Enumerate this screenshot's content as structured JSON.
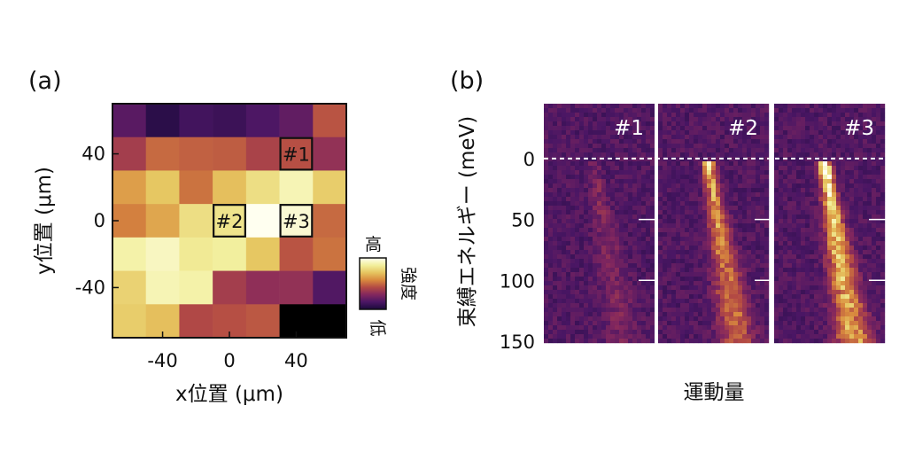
{
  "panel_a": {
    "label": "(a)"
  },
  "panel_b": {
    "label": "(b)"
  },
  "colorbar": {
    "high_label": "高",
    "low_label": "低",
    "title": "強度"
  },
  "colormap": [
    "#1b0a3a",
    "#4a1664",
    "#83275e",
    "#b34a44",
    "#d98a3e",
    "#e6c560",
    "#f2ef9c",
    "#fffff0"
  ],
  "chart_data": [
    {
      "type": "heatmap",
      "xlabel": "x位置 (μm)",
      "ylabel": "y位置 (μm)",
      "xlim": [
        -70,
        70
      ],
      "ylim": [
        -70,
        70
      ],
      "x_ticks": [
        -40,
        0,
        40
      ],
      "y_ticks": [
        40,
        0,
        -40
      ],
      "grid_x_centers": [
        -60,
        -40,
        -20,
        0,
        20,
        40,
        60
      ],
      "grid_y_centers": [
        60,
        40,
        20,
        0,
        -20,
        -40,
        -60
      ],
      "values": [
        [
          0.18,
          0.05,
          0.12,
          0.1,
          0.15,
          0.2,
          0.45
        ],
        [
          0.38,
          0.5,
          0.48,
          0.47,
          0.4,
          0.44,
          0.33
        ],
        [
          0.62,
          0.72,
          0.52,
          0.7,
          0.8,
          0.9,
          0.74
        ],
        [
          0.55,
          0.64,
          0.8,
          0.82,
          1.0,
          0.95,
          0.5
        ],
        [
          0.88,
          0.92,
          0.84,
          0.86,
          0.72,
          0.45,
          0.52
        ],
        [
          0.76,
          0.9,
          0.88,
          0.38,
          0.32,
          0.33,
          0.16
        ],
        [
          0.74,
          0.7,
          0.42,
          0.44,
          0.46,
          0.0,
          0.0
        ]
      ],
      "markers": [
        {
          "label": "#1",
          "x": 40,
          "y": 40
        },
        {
          "label": "#2",
          "x": 0,
          "y": 0
        },
        {
          "label": "#3",
          "x": 40,
          "y": 0
        }
      ]
    },
    {
      "type": "heatmap",
      "ylabel": "束縛エネルギー (meV)",
      "xlabel": "運動量",
      "ylim": [
        -45,
        150
      ],
      "y_ticks": [
        0,
        50,
        100,
        150
      ],
      "reference_line_energy": 0,
      "panels": [
        {
          "label": "#1",
          "band_intensity": 0.18,
          "onset_intensity": 0.2
        },
        {
          "label": "#2",
          "band_intensity": 0.6,
          "onset_intensity": 0.65
        },
        {
          "label": "#3",
          "band_intensity": 0.85,
          "onset_intensity": 1.0
        }
      ]
    }
  ]
}
